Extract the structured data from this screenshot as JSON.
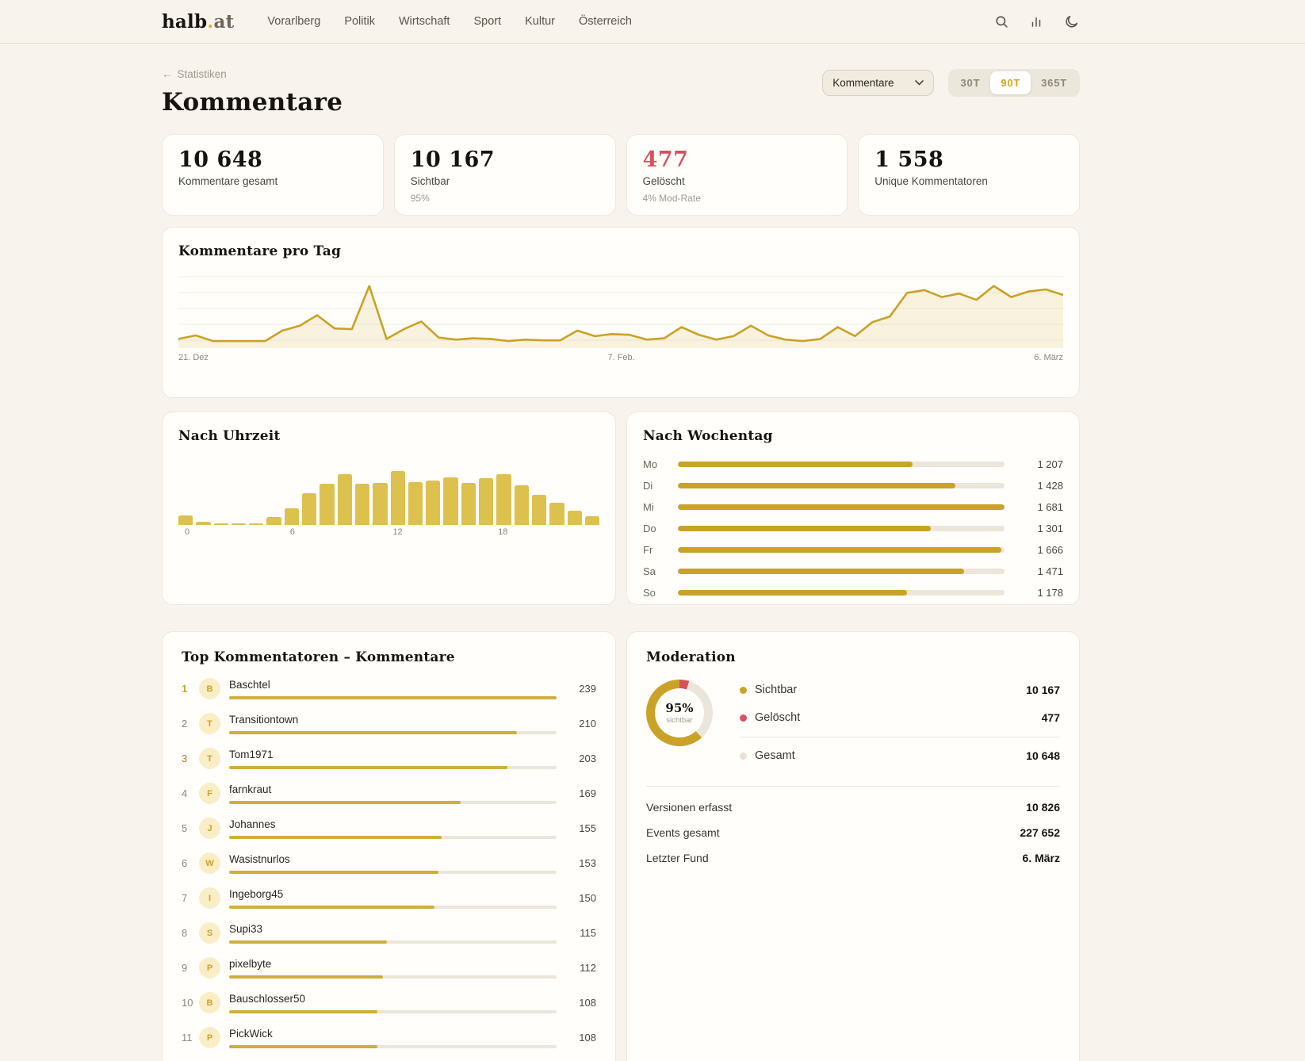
{
  "nav": {
    "logo_part1": "halb",
    "logo_dot": ".",
    "logo_part2": "at",
    "items": [
      "Vorarlberg",
      "Politik",
      "Wirtschaft",
      "Sport",
      "Kultur",
      "Österreich"
    ],
    "icons": [
      "search-icon",
      "stats-icon",
      "dark-mode-icon"
    ]
  },
  "header": {
    "back_arrow": "←",
    "back_label": "Statistiken",
    "title": "Kommentare",
    "metric_select_value": "Kommentare",
    "ranges": [
      "30T",
      "90T",
      "365T"
    ],
    "active_range": "90T"
  },
  "stat_cards": [
    {
      "value": "10 648",
      "label": "Kommentare gesamt",
      "sub": "",
      "color": "dark"
    },
    {
      "value": "10 167",
      "label": "Sichtbar",
      "sub": "95%",
      "color": "dark"
    },
    {
      "value": "477",
      "label": "Gelöscht",
      "sub": "4% Mod-Rate",
      "color": "red"
    },
    {
      "value": "1 558",
      "label": "Unique Kommentatoren",
      "sub": "",
      "color": "dark"
    }
  ],
  "chart_data": [
    {
      "type": "line",
      "title": "Kommentare pro Tag",
      "x_tick_labels": [
        "21. Dez",
        "7. Feb.",
        "6. März"
      ],
      "x_range_days": 90,
      "grid": true,
      "line_color": "#c9a227",
      "values_relative": [
        12,
        17,
        9,
        9,
        9,
        9,
        24,
        31,
        46,
        27,
        26,
        88,
        12,
        26,
        37,
        14,
        11,
        13,
        12,
        9,
        11,
        10,
        10,
        24,
        16,
        19,
        18,
        11,
        13,
        29,
        18,
        11,
        16,
        31,
        17,
        11,
        9,
        12,
        29,
        16,
        36,
        44,
        78,
        82,
        72,
        77,
        68,
        88,
        72,
        80,
        83,
        75
      ]
    },
    {
      "type": "bar",
      "title": "Nach Uhrzeit",
      "categories_hours": [
        0,
        1,
        2,
        3,
        4,
        5,
        6,
        7,
        8,
        9,
        10,
        11,
        12,
        13,
        14,
        15,
        16,
        17,
        18,
        19,
        20,
        21,
        22,
        23
      ],
      "tick_labels": [
        "0",
        "6",
        "12",
        "18"
      ],
      "tick_hours": [
        0,
        6,
        12,
        18
      ],
      "bar_color": "#dcc14f",
      "values_relative": [
        15,
        5,
        2,
        2,
        3,
        13,
        26,
        50,
        65,
        80,
        65,
        66,
        85,
        68,
        70,
        75,
        66,
        74,
        80,
        62,
        48,
        35,
        22,
        14
      ]
    },
    {
      "type": "bar",
      "title": "Nach Wochentag",
      "orientation": "horizontal",
      "bar_color": "#c9a227",
      "max_value": 1681,
      "rows": [
        {
          "label": "Mo",
          "value": 1207,
          "display": "1 207"
        },
        {
          "label": "Di",
          "value": 1428,
          "display": "1 428"
        },
        {
          "label": "Mi",
          "value": 1681,
          "display": "1 681"
        },
        {
          "label": "Do",
          "value": 1301,
          "display": "1 301"
        },
        {
          "label": "Fr",
          "value": 1666,
          "display": "1 666"
        },
        {
          "label": "Sa",
          "value": 1471,
          "display": "1 471"
        },
        {
          "label": "So",
          "value": 1178,
          "display": "1 178"
        }
      ]
    },
    {
      "type": "pie",
      "title": "Moderation",
      "center_value": "95%",
      "center_label": "sichtbar",
      "segments": [
        {
          "label": "Gelöscht",
          "value": 477,
          "color": "#d6525c"
        },
        {
          "label": "Sichtbar",
          "value": 10167,
          "color": "#c9a227"
        },
        {
          "label": "Gesamt",
          "value": 10648,
          "color": "#ece5db"
        }
      ]
    }
  ],
  "top_commenters": {
    "title": "Top Kommentatoren – Kommentare",
    "max_value": 239,
    "rows": [
      {
        "rank": "1",
        "initial": "B",
        "name": "Baschtel",
        "value": 239,
        "display": "239"
      },
      {
        "rank": "2",
        "initial": "T",
        "name": "Transitiontown",
        "value": 210,
        "display": "210"
      },
      {
        "rank": "3",
        "initial": "T",
        "name": "Tom1971",
        "value": 203,
        "display": "203"
      },
      {
        "rank": "4",
        "initial": "F",
        "name": "farnkraut",
        "value": 169,
        "display": "169"
      },
      {
        "rank": "5",
        "initial": "J",
        "name": "Johannes",
        "value": 155,
        "display": "155"
      },
      {
        "rank": "6",
        "initial": "W",
        "name": "Wasistnurlos",
        "value": 153,
        "display": "153"
      },
      {
        "rank": "7",
        "initial": "I",
        "name": "Ingeborg45",
        "value": 150,
        "display": "150"
      },
      {
        "rank": "8",
        "initial": "S",
        "name": "Supi33",
        "value": 115,
        "display": "115"
      },
      {
        "rank": "9",
        "initial": "P",
        "name": "pixelbyte",
        "value": 112,
        "display": "112"
      },
      {
        "rank": "10",
        "initial": "B",
        "name": "Bauschlosser50",
        "value": 108,
        "display": "108"
      },
      {
        "rank": "11",
        "initial": "P",
        "name": "PickWick",
        "value": 108,
        "display": "108"
      }
    ]
  },
  "moderation": {
    "title": "Moderation",
    "donut_center_value": "95%",
    "donut_center_label": "sichtbar",
    "legend": [
      {
        "label": "Sichtbar",
        "value": "10 167",
        "color": "#c9a227",
        "divider_before": false
      },
      {
        "label": "Gelöscht",
        "value": "477",
        "color": "#d6525c",
        "divider_before": false
      },
      {
        "label": "Gesamt",
        "value": "10 648",
        "color": "#e8e1d4",
        "divider_before": true
      }
    ],
    "stats": [
      {
        "label": "Versionen erfasst",
        "value": "10 826"
      },
      {
        "label": "Events gesamt",
        "value": "227 652"
      },
      {
        "label": "Letzter Fund",
        "value": "6. März"
      }
    ]
  },
  "colors": {
    "background": "#f8f3ec",
    "card": "#fffefb",
    "gold": "#c9a227",
    "mustard": "#dcc14f",
    "red": "#d6525c",
    "text_dark": "#171310",
    "text_muted": "#8d867c"
  }
}
